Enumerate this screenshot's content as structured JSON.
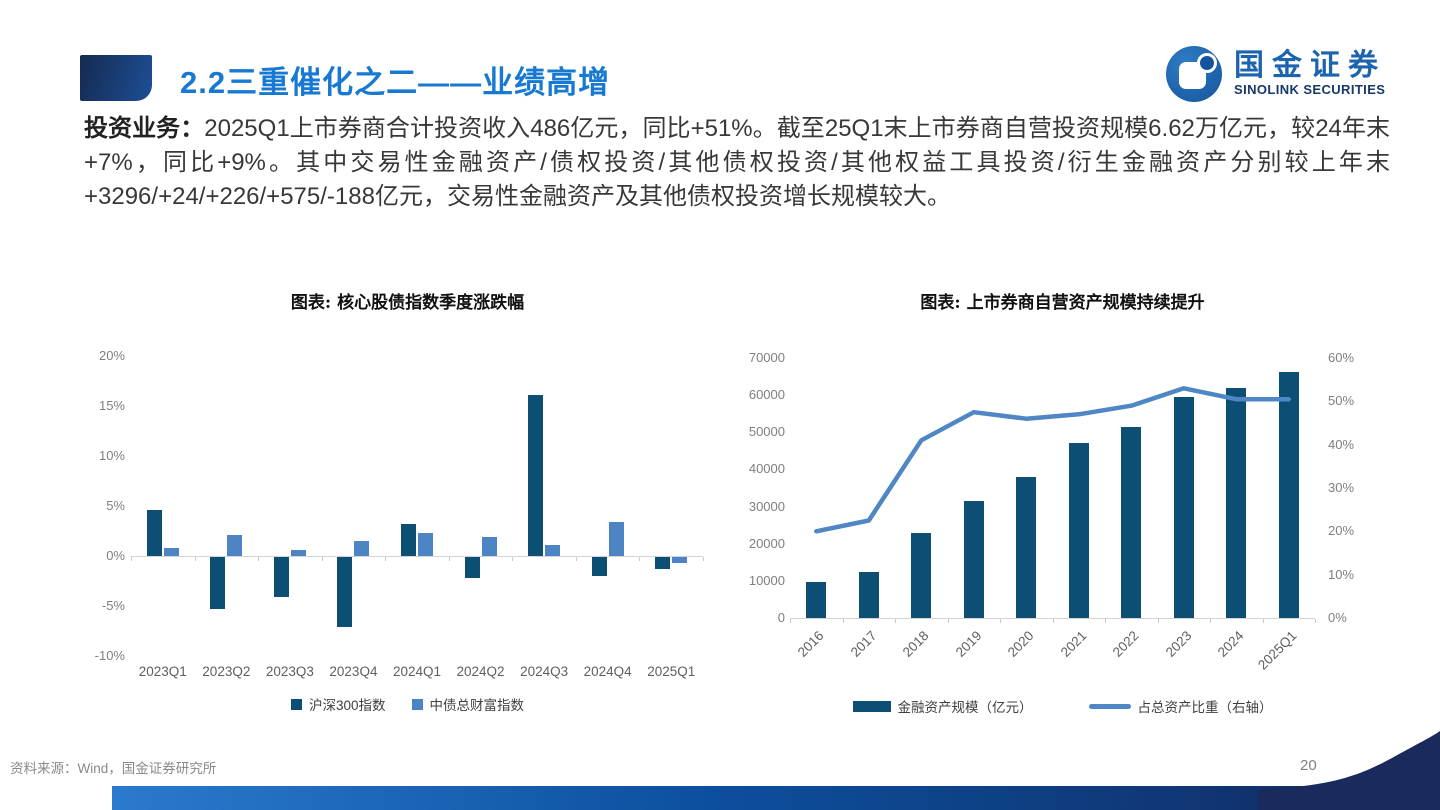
{
  "header": {
    "title": "2.2三重催化之二——业绩高增"
  },
  "logo": {
    "cn": "国金证券",
    "en": "SINOLINK SECURITIES"
  },
  "paragraph": {
    "lead": "投资业务：",
    "body": "2025Q1上市券商合计投资收入486亿元，同比+51%。截至25Q1末上市券商自营投资规模6.62万亿元，较24年末+7%，同比+9%。其中交易性金融资产/债权投资/其他债权投资/其他权益工具投资/衍生金融资产分别较上年末+3296/+24/+226/+575/-188亿元，交易性金融资产及其他债权投资增长规模较大。"
  },
  "footer": {
    "source": "资料来源：Wind，国金证券研究所",
    "page": "20"
  },
  "colors": {
    "title_blue": "#1779d1",
    "bar_navy": "#0d4e74",
    "bar_blue": "#4d84c4",
    "line_blue": "#4f86c5",
    "header_dark": "#152a50",
    "header_light": "#1d4f96",
    "swoosh_navy": "#1a2a5c",
    "bottombar_left": "#2b7ace",
    "bottombar_right": "#12295e",
    "logo_blue": "#14549c",
    "axis_gray": "#7f7f7f"
  },
  "chart_data": [
    {
      "type": "bar",
      "title": "图表: 核心股债指数季度涨跌幅",
      "categories": [
        "2023Q1",
        "2023Q2",
        "2023Q3",
        "2023Q4",
        "2024Q1",
        "2024Q2",
        "2024Q3",
        "2024Q4",
        "2025Q1"
      ],
      "series": [
        {
          "name": "沪深300指数",
          "color": "#0d4e74",
          "values": [
            4.6,
            -5.2,
            -4.0,
            -7.0,
            3.2,
            -2.1,
            16.1,
            -1.9,
            -1.2
          ]
        },
        {
          "name": "中债总财富指数",
          "color": "#4d84c4",
          "values": [
            0.8,
            2.1,
            0.6,
            1.5,
            2.3,
            1.9,
            1.1,
            3.4,
            -0.6
          ]
        }
      ],
      "ylim": [
        -10,
        20
      ],
      "yticks": [
        20,
        15,
        10,
        5,
        0,
        -5,
        -10
      ],
      "ytick_format": "percent",
      "grid": false,
      "legend_position": "bottom"
    },
    {
      "type": "bar+line",
      "title": "图表: 上市券商自营资产规模持续提升",
      "categories": [
        "2016",
        "2017",
        "2018",
        "2019",
        "2020",
        "2021",
        "2022",
        "2023",
        "2024",
        "2025Q1"
      ],
      "bar_series": {
        "name": "金融资产规模（亿元）",
        "color": "#0d4e74",
        "axis": "left",
        "values": [
          9800,
          12300,
          22800,
          31500,
          38000,
          47000,
          51500,
          59600,
          62000,
          66200
        ]
      },
      "line_series": {
        "name": "占总资产比重（右轴）",
        "color": "#4f86c5",
        "axis": "right",
        "values": [
          20,
          22.5,
          41,
          47.5,
          46,
          47,
          49,
          53,
          50.5,
          50.5
        ]
      },
      "left_ylim": [
        0,
        70000
      ],
      "left_yticks": [
        70000,
        60000,
        50000,
        40000,
        30000,
        20000,
        10000,
        0
      ],
      "right_ylim": [
        0,
        60
      ],
      "right_yticks": [
        60,
        50,
        40,
        30,
        20,
        10,
        0
      ],
      "grid": false,
      "legend_position": "bottom"
    }
  ]
}
